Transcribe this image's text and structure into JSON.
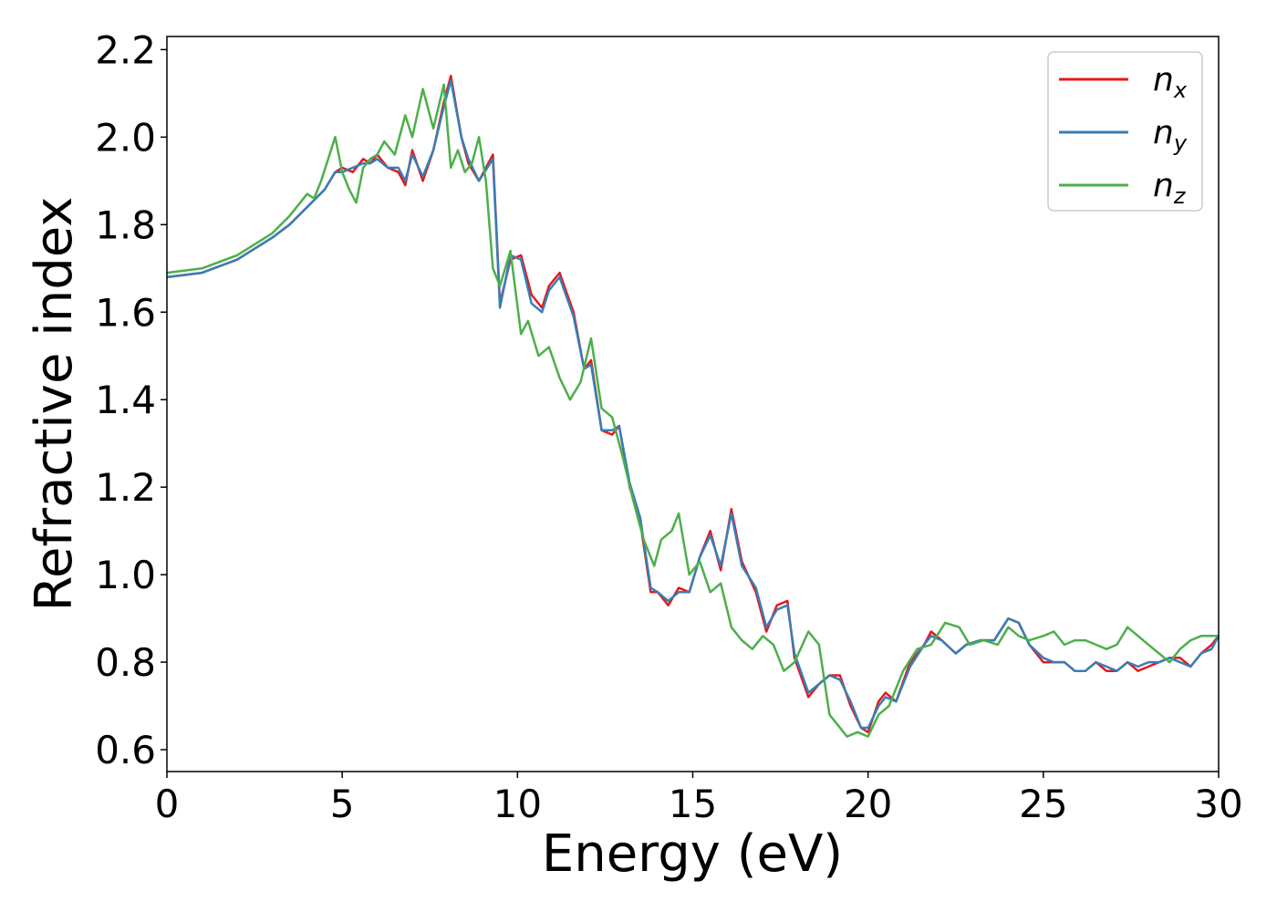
{
  "chart_data": {
    "type": "line",
    "title": "",
    "xlabel": "Energy (eV)",
    "ylabel": "Refractive index",
    "xlim": [
      0,
      30
    ],
    "ylim": [
      0.55,
      2.23
    ],
    "xticks": [
      0,
      5,
      10,
      15,
      20,
      25,
      30
    ],
    "xtick_labels": [
      "0",
      "5",
      "10",
      "15",
      "20",
      "25",
      "30"
    ],
    "yticks": [
      0.6,
      0.8,
      1.0,
      1.2,
      1.4,
      1.6,
      1.8,
      2.0,
      2.2
    ],
    "ytick_labels": [
      "0.6",
      "0.8",
      "1.0",
      "1.2",
      "1.4",
      "1.6",
      "1.8",
      "2.0",
      "2.2"
    ],
    "grid": false,
    "legend_position": "top-right",
    "series": [
      {
        "name": "n_x",
        "legend_base": "n",
        "legend_sub": "x",
        "color": "#e41a1c",
        "x": [
          0,
          1,
          2,
          3,
          3.5,
          4,
          4.5,
          4.8,
          5,
          5.3,
          5.6,
          5.8,
          6,
          6.3,
          6.6,
          6.8,
          7,
          7.3,
          7.6,
          7.9,
          8.1,
          8.4,
          8.6,
          8.9,
          9.3,
          9.5,
          9.8,
          10.1,
          10.4,
          10.7,
          10.9,
          11.2,
          11.6,
          11.9,
          12.1,
          12.4,
          12.7,
          12.9,
          13.2,
          13.5,
          13.8,
          14.0,
          14.3,
          14.6,
          14.9,
          15.2,
          15.5,
          15.8,
          16.1,
          16.4,
          16.8,
          17.1,
          17.4,
          17.7,
          17.9,
          18.3,
          18.6,
          18.9,
          19.2,
          19.5,
          19.8,
          20.0,
          20.3,
          20.5,
          20.8,
          21.2,
          21.6,
          21.8,
          22.1,
          22.5,
          22.8,
          23.2,
          23.6,
          24.0,
          24.3,
          24.6,
          25.0,
          25.3,
          25.6,
          25.9,
          26.2,
          26.5,
          26.8,
          27.1,
          27.4,
          27.7,
          28.0,
          28.3,
          28.6,
          28.9,
          29.2,
          29.5,
          29.8,
          30
        ],
        "y": [
          1.68,
          1.69,
          1.72,
          1.77,
          1.8,
          1.84,
          1.88,
          1.92,
          1.93,
          1.92,
          1.95,
          1.94,
          1.96,
          1.93,
          1.92,
          1.89,
          1.97,
          1.9,
          1.97,
          2.08,
          2.14,
          2.0,
          1.94,
          1.9,
          1.96,
          1.62,
          1.72,
          1.73,
          1.64,
          1.61,
          1.66,
          1.69,
          1.6,
          1.47,
          1.49,
          1.33,
          1.32,
          1.34,
          1.2,
          1.12,
          0.96,
          0.96,
          0.93,
          0.97,
          0.96,
          1.04,
          1.1,
          1.01,
          1.15,
          1.03,
          0.96,
          0.87,
          0.93,
          0.94,
          0.81,
          0.72,
          0.75,
          0.77,
          0.77,
          0.7,
          0.65,
          0.64,
          0.71,
          0.73,
          0.71,
          0.8,
          0.84,
          0.87,
          0.85,
          0.82,
          0.84,
          0.85,
          0.85,
          0.9,
          0.89,
          0.84,
          0.8,
          0.8,
          0.8,
          0.78,
          0.78,
          0.8,
          0.78,
          0.78,
          0.8,
          0.78,
          0.79,
          0.8,
          0.81,
          0.81,
          0.79,
          0.82,
          0.84,
          0.86
        ]
      },
      {
        "name": "n_y",
        "legend_base": "n",
        "legend_sub": "y",
        "color": "#377eb8",
        "x": [
          0,
          1,
          2,
          3,
          3.5,
          4,
          4.5,
          4.8,
          5,
          5.3,
          5.6,
          5.8,
          6,
          6.3,
          6.6,
          6.8,
          7,
          7.3,
          7.6,
          7.9,
          8.1,
          8.4,
          8.6,
          8.9,
          9.3,
          9.5,
          9.8,
          10.1,
          10.4,
          10.7,
          10.9,
          11.2,
          11.6,
          11.9,
          12.1,
          12.4,
          12.7,
          12.9,
          13.2,
          13.5,
          13.8,
          14.0,
          14.3,
          14.6,
          14.9,
          15.2,
          15.5,
          15.8,
          16.1,
          16.4,
          16.8,
          17.1,
          17.4,
          17.7,
          17.9,
          18.3,
          18.6,
          18.9,
          19.2,
          19.5,
          19.8,
          20.0,
          20.3,
          20.5,
          20.8,
          21.2,
          21.6,
          21.8,
          22.1,
          22.5,
          22.8,
          23.2,
          23.6,
          24.0,
          24.3,
          24.6,
          25.0,
          25.3,
          25.6,
          25.9,
          26.2,
          26.5,
          26.8,
          27.1,
          27.4,
          27.7,
          28.0,
          28.3,
          28.6,
          28.9,
          29.2,
          29.5,
          29.8,
          30
        ],
        "y": [
          1.68,
          1.69,
          1.72,
          1.77,
          1.8,
          1.84,
          1.88,
          1.92,
          1.92,
          1.93,
          1.94,
          1.94,
          1.95,
          1.93,
          1.93,
          1.9,
          1.96,
          1.91,
          1.97,
          2.07,
          2.13,
          2.0,
          1.95,
          1.9,
          1.95,
          1.61,
          1.73,
          1.72,
          1.62,
          1.6,
          1.65,
          1.68,
          1.59,
          1.47,
          1.48,
          1.33,
          1.33,
          1.34,
          1.21,
          1.13,
          0.97,
          0.96,
          0.94,
          0.96,
          0.96,
          1.04,
          1.09,
          1.02,
          1.14,
          1.02,
          0.97,
          0.88,
          0.92,
          0.93,
          0.82,
          0.73,
          0.75,
          0.77,
          0.76,
          0.71,
          0.65,
          0.65,
          0.7,
          0.72,
          0.71,
          0.79,
          0.84,
          0.86,
          0.85,
          0.82,
          0.84,
          0.85,
          0.85,
          0.9,
          0.89,
          0.84,
          0.81,
          0.8,
          0.8,
          0.78,
          0.78,
          0.8,
          0.79,
          0.78,
          0.8,
          0.79,
          0.8,
          0.8,
          0.81,
          0.8,
          0.79,
          0.82,
          0.83,
          0.86
        ]
      },
      {
        "name": "n_z",
        "legend_base": "n",
        "legend_sub": "z",
        "color": "#4daf4a",
        "x": [
          0,
          1,
          2,
          3,
          3.5,
          4,
          4.2,
          4.4,
          4.6,
          4.8,
          5,
          5.2,
          5.4,
          5.6,
          5.8,
          6,
          6.2,
          6.5,
          6.8,
          7,
          7.3,
          7.6,
          7.9,
          8.1,
          8.3,
          8.5,
          8.7,
          8.9,
          9.1,
          9.3,
          9.5,
          9.8,
          10.1,
          10.3,
          10.6,
          10.9,
          11.2,
          11.5,
          11.8,
          12.1,
          12.4,
          12.7,
          13.0,
          13.3,
          13.6,
          13.9,
          14.1,
          14.4,
          14.6,
          14.9,
          15.2,
          15.5,
          15.8,
          16.1,
          16.4,
          16.7,
          17.0,
          17.3,
          17.6,
          17.9,
          18.3,
          18.6,
          18.9,
          19.1,
          19.4,
          19.7,
          20.0,
          20.3,
          20.6,
          21.0,
          21.4,
          21.8,
          22.2,
          22.6,
          22.9,
          23.3,
          23.7,
          24.0,
          24.3,
          24.6,
          25.0,
          25.3,
          25.6,
          25.9,
          26.2,
          26.5,
          26.8,
          27.1,
          27.4,
          27.7,
          28.0,
          28.3,
          28.6,
          28.9,
          29.2,
          29.5,
          29.8,
          30
        ],
        "y": [
          1.69,
          1.7,
          1.73,
          1.78,
          1.82,
          1.87,
          1.86,
          1.9,
          1.95,
          2.0,
          1.92,
          1.88,
          1.85,
          1.93,
          1.95,
          1.96,
          1.99,
          1.96,
          2.05,
          2.0,
          2.11,
          2.02,
          2.12,
          1.93,
          1.97,
          1.92,
          1.94,
          2.0,
          1.9,
          1.7,
          1.66,
          1.74,
          1.55,
          1.58,
          1.5,
          1.52,
          1.45,
          1.4,
          1.44,
          1.54,
          1.38,
          1.36,
          1.27,
          1.17,
          1.08,
          1.02,
          1.08,
          1.1,
          1.14,
          1.0,
          1.03,
          0.96,
          0.98,
          0.88,
          0.85,
          0.83,
          0.86,
          0.84,
          0.78,
          0.8,
          0.87,
          0.84,
          0.68,
          0.66,
          0.63,
          0.64,
          0.63,
          0.68,
          0.7,
          0.78,
          0.83,
          0.84,
          0.89,
          0.88,
          0.84,
          0.85,
          0.84,
          0.88,
          0.86,
          0.85,
          0.86,
          0.87,
          0.84,
          0.85,
          0.85,
          0.84,
          0.83,
          0.84,
          0.88,
          0.86,
          0.84,
          0.82,
          0.8,
          0.83,
          0.85,
          0.86,
          0.86,
          0.86
        ]
      }
    ]
  }
}
